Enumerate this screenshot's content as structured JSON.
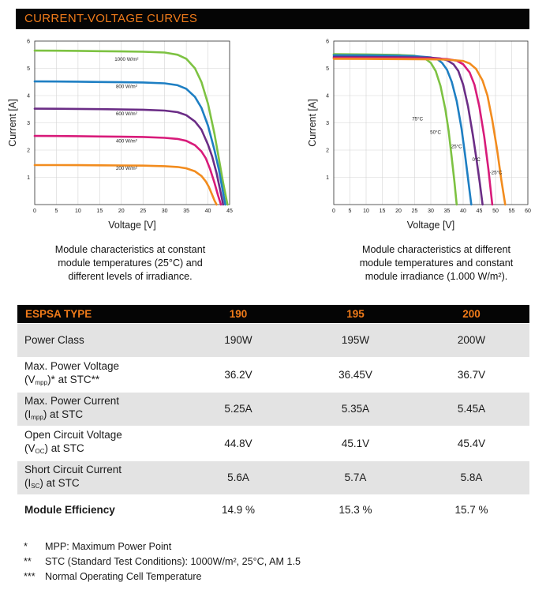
{
  "banner": {
    "title": "CURRENT-VOLTAGE CURVES"
  },
  "chart_data": [
    {
      "type": "line",
      "xlabel": "Voltage [V]",
      "ylabel": "Current [A]",
      "xlim": [
        0,
        45
      ],
      "ylim": [
        0,
        6
      ],
      "xticks": [
        0,
        5,
        10,
        15,
        20,
        25,
        30,
        35,
        40,
        45
      ],
      "yticks": [
        1,
        2,
        3,
        4,
        5,
        6
      ],
      "grid": true,
      "series": [
        {
          "name": "1000 W/m²",
          "color": "#7dc242",
          "x": [
            0,
            5,
            10,
            15,
            20,
            25,
            30,
            33,
            35,
            37,
            38.5,
            40,
            41.5,
            42.5,
            43.5,
            44.5
          ],
          "y": [
            5.65,
            5.645,
            5.64,
            5.63,
            5.62,
            5.61,
            5.58,
            5.5,
            5.35,
            5.0,
            4.5,
            3.7,
            2.6,
            1.7,
            0.8,
            0
          ]
        },
        {
          "name": "800 W/m²",
          "color": "#1e7fc3",
          "x": [
            0,
            5,
            10,
            15,
            20,
            25,
            30,
            33,
            35,
            37,
            38.5,
            40,
            41.5,
            42.5,
            43.3,
            44
          ],
          "y": [
            4.52,
            4.515,
            4.51,
            4.5,
            4.49,
            4.48,
            4.45,
            4.38,
            4.25,
            3.95,
            3.55,
            2.9,
            2.0,
            1.3,
            0.6,
            0
          ]
        },
        {
          "name": "600 W/m²",
          "color": "#6b2d86",
          "x": [
            0,
            5,
            10,
            15,
            20,
            25,
            30,
            33,
            35,
            37,
            38.5,
            40,
            41,
            42,
            42.8,
            43.5
          ],
          "y": [
            3.52,
            3.515,
            3.51,
            3.5,
            3.49,
            3.48,
            3.45,
            3.39,
            3.28,
            3.05,
            2.75,
            2.2,
            1.75,
            1.15,
            0.55,
            0
          ]
        },
        {
          "name": "400 W/m²",
          "color": "#d81b7a",
          "x": [
            0,
            5,
            10,
            15,
            20,
            25,
            30,
            33,
            35,
            37,
            38.5,
            39.5,
            40.5,
            41.5,
            42.3,
            43
          ],
          "y": [
            2.52,
            2.515,
            2.51,
            2.5,
            2.49,
            2.48,
            2.45,
            2.41,
            2.34,
            2.18,
            1.95,
            1.7,
            1.3,
            0.8,
            0.35,
            0
          ]
        },
        {
          "name": "200 W/m²",
          "color": "#f28c1e",
          "x": [
            0,
            5,
            10,
            15,
            20,
            25,
            30,
            33,
            35,
            37,
            38.5,
            39.5,
            40.2,
            41,
            41.5,
            42
          ],
          "y": [
            1.45,
            1.448,
            1.445,
            1.44,
            1.435,
            1.43,
            1.41,
            1.38,
            1.33,
            1.22,
            1.05,
            0.85,
            0.65,
            0.35,
            0.15,
            0
          ]
        }
      ],
      "labels": [
        {
          "text": "1000 W/m²",
          "x": 21.2,
          "y": 5.27
        },
        {
          "text": "800 W/m²",
          "x": 21.2,
          "y": 4.27
        },
        {
          "text": "600 W/m²",
          "x": 21.2,
          "y": 3.27
        },
        {
          "text": "400 W/m²",
          "x": 21.2,
          "y": 2.27
        },
        {
          "text": "200 W/m²",
          "x": 21.2,
          "y": 1.27
        }
      ]
    },
    {
      "type": "line",
      "xlabel": "Voltage [V]",
      "ylabel": "Current [A]",
      "xlim": [
        0,
        60
      ],
      "ylim": [
        0,
        6
      ],
      "xticks": [
        0,
        5,
        10,
        15,
        20,
        25,
        30,
        35,
        40,
        45,
        50,
        55,
        60
      ],
      "yticks": [
        1,
        2,
        3,
        4,
        5,
        6
      ],
      "grid": true,
      "series": [
        {
          "name": "75°C",
          "color": "#7dc242",
          "x": [
            0,
            10,
            20,
            25,
            28,
            30,
            31.5,
            33,
            34.5,
            35.5,
            36.5,
            37.3,
            38
          ],
          "y": [
            5.52,
            5.51,
            5.49,
            5.46,
            5.38,
            5.2,
            4.9,
            4.35,
            3.5,
            2.7,
            1.7,
            0.85,
            0
          ]
        },
        {
          "name": "50°C",
          "color": "#1e7fc3",
          "x": [
            0,
            10,
            20,
            25,
            30,
            32,
            33.5,
            35,
            36.5,
            38,
            39.5,
            40.5,
            41.5,
            42.5
          ],
          "y": [
            5.48,
            5.475,
            5.46,
            5.45,
            5.4,
            5.34,
            5.2,
            4.95,
            4.5,
            3.8,
            2.8,
            1.9,
            0.95,
            0
          ]
        },
        {
          "name": "25°C",
          "color": "#6b2d86",
          "x": [
            0,
            10,
            20,
            30,
            33,
            35,
            37,
            38.5,
            40,
            41.5,
            43,
            44.2,
            45.2,
            46
          ],
          "y": [
            5.42,
            5.415,
            5.41,
            5.39,
            5.36,
            5.3,
            5.15,
            4.9,
            4.4,
            3.6,
            2.55,
            1.6,
            0.75,
            0
          ]
        },
        {
          "name": "0°C",
          "color": "#d81b7a",
          "x": [
            0,
            10,
            20,
            30,
            35,
            38,
            40,
            42,
            43.5,
            45,
            46.5,
            47.8,
            49
          ],
          "y": [
            5.38,
            5.375,
            5.37,
            5.36,
            5.34,
            5.28,
            5.15,
            4.85,
            4.4,
            3.6,
            2.5,
            1.3,
            0
          ]
        },
        {
          "name": "-25°C",
          "color": "#f28c1e",
          "x": [
            0,
            10,
            20,
            30,
            35,
            40,
            42,
            44,
            46,
            47.5,
            49,
            50.5,
            51.8,
            53
          ],
          "y": [
            5.35,
            5.345,
            5.34,
            5.33,
            5.32,
            5.27,
            5.18,
            4.98,
            4.55,
            4.0,
            3.1,
            2.0,
            0.9,
            0
          ]
        }
      ],
      "labels": [
        {
          "text": "75°C",
          "x": 24.2,
          "y": 3.08
        },
        {
          "text": "50°C",
          "x": 29.8,
          "y": 2.6
        },
        {
          "text": "25°C",
          "x": 36.3,
          "y": 2.07
        },
        {
          "text": "0°C",
          "x": 42.8,
          "y": 1.6
        },
        {
          "text": "-25°C",
          "x": 48.2,
          "y": 1.12
        }
      ]
    }
  ],
  "captions": {
    "left": [
      "Module characteristics at constant",
      "module temperatures (25°C) and",
      "different levels of irradiance."
    ],
    "right": [
      "Module characteristics at different",
      "module temperatures and constant",
      "module irradiance (1.000 W/m²)."
    ]
  },
  "table": {
    "header": [
      "ESPSA TYPE",
      "190",
      "195",
      "200"
    ],
    "rows": [
      {
        "l1": "Power Class",
        "l2": "",
        "sub": "",
        "after": "",
        "values": [
          "190W",
          "195W",
          "200W"
        ]
      },
      {
        "l1": "Max. Power Voltage",
        "l2": "(V",
        "sub": "mpp",
        "after": ")* at STC**",
        "values": [
          "36.2V",
          "36.45V",
          "36.7V"
        ]
      },
      {
        "l1": "Max. Power Current",
        "l2": "(I",
        "sub": "mpp",
        "after": ") at STC",
        "values": [
          "5.25A",
          "5.35A",
          "5.45A"
        ]
      },
      {
        "l1": "Open Circuit Voltage",
        "l2": "(V",
        "sub": "OC",
        "after": ") at STC",
        "values": [
          "44.8V",
          "45.1V",
          "45.4V"
        ]
      },
      {
        "l1": "Short Circuit Current",
        "l2": "(I",
        "sub": "SC",
        "after": ") at STC",
        "values": [
          "5.6A",
          "5.7A",
          "5.8A"
        ]
      },
      {
        "l1": "Module Efficiency",
        "l2": "",
        "sub": "",
        "after": "",
        "values": [
          "14.9 %",
          "15.3 %",
          "15.7 %"
        ]
      }
    ]
  },
  "notes": [
    {
      "symbol": "*",
      "text": "MPP: Maximum Power Point"
    },
    {
      "symbol": "**",
      "text": "STC (Standard Test Conditions): 1000W/m², 25°C, AM 1.5"
    },
    {
      "symbol": "***",
      "text": "Normal Operating Cell Temperature"
    }
  ],
  "colors": {
    "accent": "#f07b1a",
    "banner_bg": "#050505",
    "row_shade": "#e3e3e3"
  }
}
